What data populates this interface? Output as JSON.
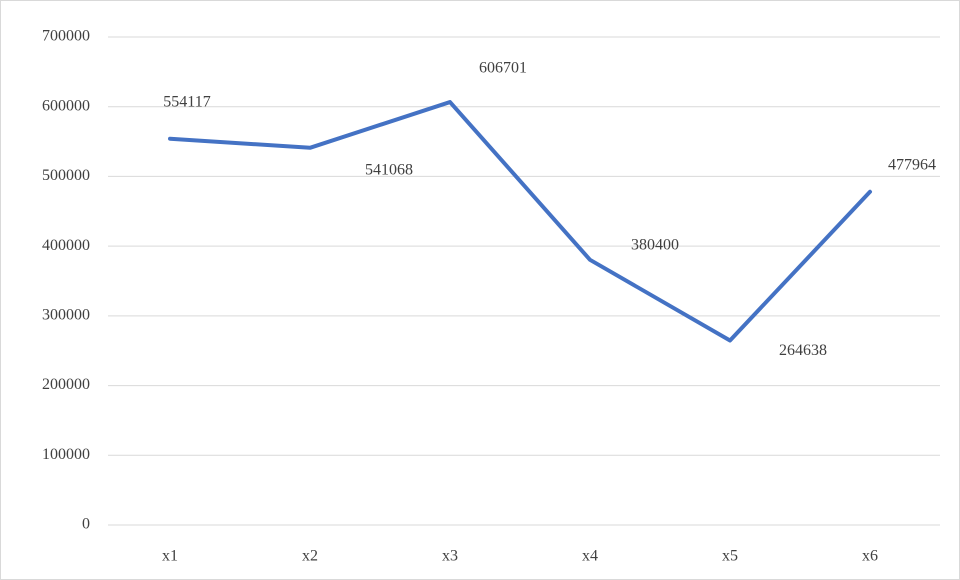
{
  "chart_data": {
    "type": "line",
    "categories": [
      "x1",
      "x2",
      "x3",
      "x4",
      "x5",
      "x6"
    ],
    "series": [
      {
        "color": "#4472c4",
        "values": [
          554117,
          541068,
          606701,
          380400,
          264638,
          477964
        ]
      }
    ],
    "ylim": [
      0,
      700000
    ],
    "yticks": [
      0,
      100000,
      200000,
      300000,
      400000,
      500000,
      600000,
      700000
    ],
    "grid": true
  }
}
